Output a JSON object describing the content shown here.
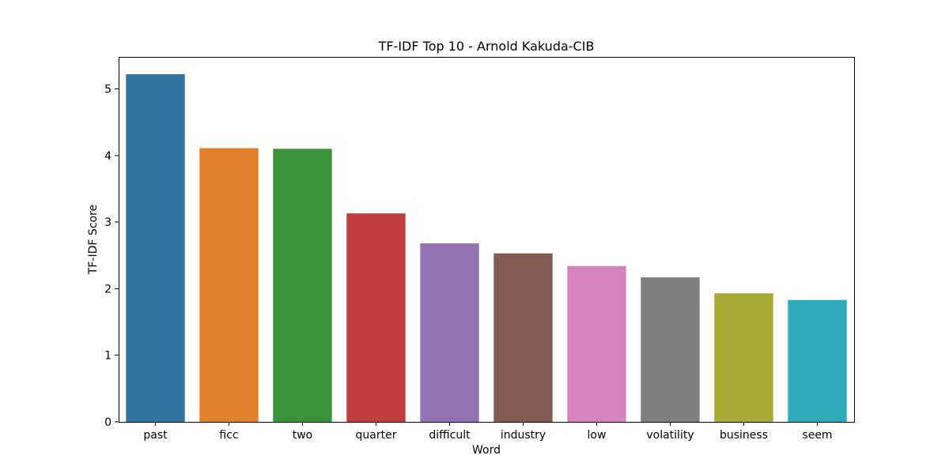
{
  "chart_data": {
    "type": "bar",
    "title": "TF-IDF Top 10 - Arnold Kakuda-CIB",
    "xlabel": "Word",
    "ylabel": "TF-IDF Score",
    "categories": [
      "past",
      "ficc",
      "two",
      "quarter",
      "difficult",
      "industry",
      "low",
      "volatility",
      "business",
      "seem"
    ],
    "values": [
      5.22,
      4.11,
      4.1,
      3.13,
      2.68,
      2.53,
      2.34,
      2.17,
      1.93,
      1.83
    ],
    "colors": [
      "#3274a1",
      "#e1812c",
      "#3a923a",
      "#c03d3e",
      "#9372b2",
      "#845b53",
      "#d684bd",
      "#7f7f7f",
      "#a9aa35",
      "#2eabb8"
    ],
    "ylim": [
      0,
      5.48
    ],
    "yticks": [
      0,
      1,
      2,
      3,
      4,
      5
    ],
    "grid": false,
    "legend": "none"
  }
}
